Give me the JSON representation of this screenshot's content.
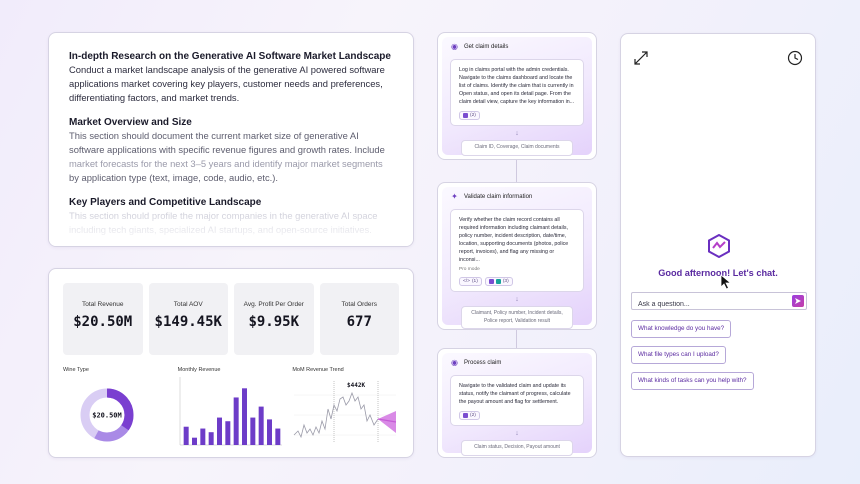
{
  "research": {
    "title": "In-depth Research on the Generative AI Software Market Landscape",
    "intro": "Conduct a market landscape analysis of the generative AI powered software applications market covering key players, customer needs and preferences, differentiating factors, and market trends.",
    "section1_title": "Market Overview and Size",
    "section1_text_a": "This section should document the current market size of generative AI software applications with specific revenue figures and growth rates. Include",
    "section1_text_b": "market forecasts for the next 3–5 years and identify major market segments",
    "section1_text_c": "by application type (text, image, code, audio, etc.).",
    "section2_title": "Key Players and Competitive Landscape",
    "section2_text_a": "This section should profile the major companies in the generative AI space",
    "section2_text_b": "including tech giants, specialized AI startups, and open-source initiatives."
  },
  "dashboard": {
    "kpis": [
      {
        "label": "Total Revenue",
        "value": "$20.50M"
      },
      {
        "label": "Total AOV",
        "value": "$149.45K"
      },
      {
        "label": "Avg. Profit Per Order",
        "value": "$9.95K"
      },
      {
        "label": "Total Orders",
        "value": "677"
      }
    ],
    "donut": {
      "title": "Wine Type",
      "center": "$20.50M",
      "colors": [
        "#7a3fd0",
        "#a98ae6",
        "#d9cdf4"
      ]
    },
    "monthly": {
      "title": "Monthly Revenue",
      "color": "#6d3cc8",
      "values": [
        20,
        8,
        18,
        14,
        30,
        26,
        52,
        62,
        30,
        42,
        28,
        18
      ]
    },
    "trend": {
      "title": "MoM Revenue Trend",
      "label": "$442K",
      "color": "#c55bd6"
    }
  },
  "workflow": [
    {
      "title": "Get claim details",
      "text": "Log in claims portal with the admin credentials. Navigate to the claims dashboard and locate the list of claims. Identify the claim that is currently in Open status, and open its detail page. From the claim detail view, capture the key information in...",
      "chip": "(2)",
      "output": "Claim ID, Coverage, Claim documents"
    },
    {
      "title": "Validate claim information",
      "text": "Verify whether the claim record contains all required information including claimant details, policy number, incident description, date/time, location, supporting documents (photos, police report, invoices), and flag any missing or inconsi...",
      "mode": "Pro mode",
      "code_chip": "(1)",
      "chip": "(3)",
      "output": "Claimant, Policy number, Incident details, Police report, Validation result"
    },
    {
      "title": "Process claim",
      "text": "Navigate to the validated claim and update its status, notify the claimant of progress, calculate the payout amount and flag for settlement.",
      "chip": "(2)",
      "output": "Claim status, Decision, Payout amount"
    }
  ],
  "chat": {
    "greeting": "Good afternoon! Let's chat.",
    "placeholder": "Ask a question...",
    "suggestions": [
      "What knowledge do you have?",
      "What file types can I upload?",
      "What kinds of tasks can you help with?"
    ],
    "icons": [
      "expand-icon",
      "history-icon",
      "send-icon"
    ]
  }
}
